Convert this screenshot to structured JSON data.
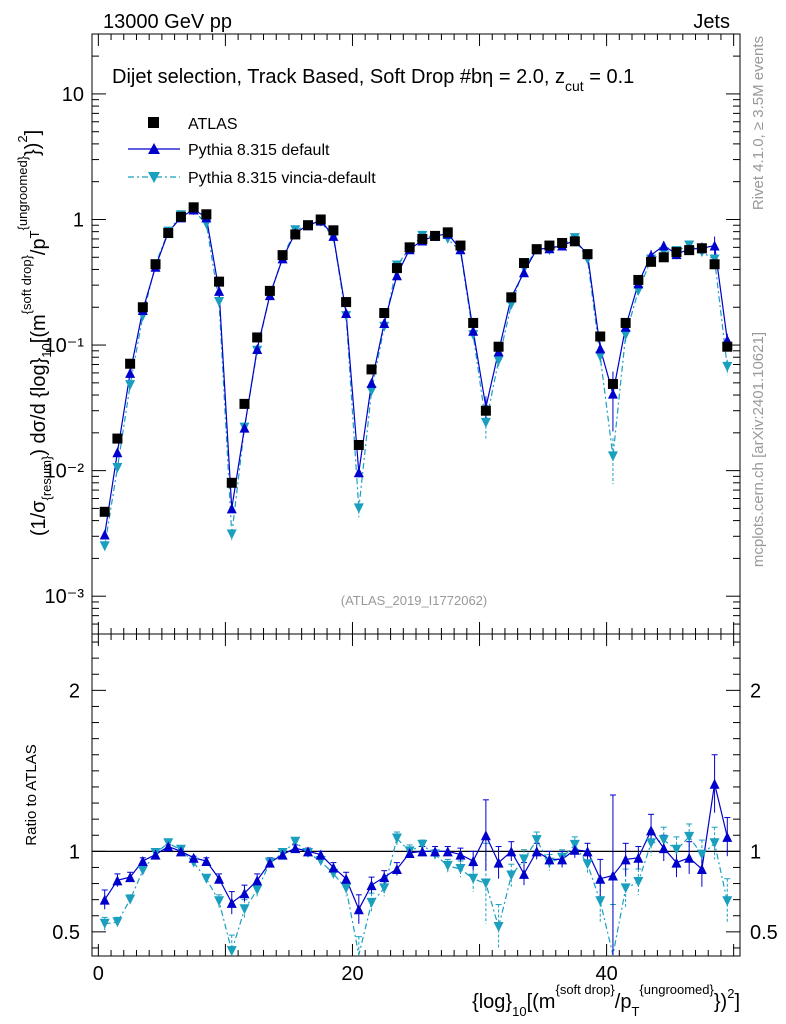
{
  "header": {
    "energy": "13000 GeV pp",
    "process": "Jets",
    "title": "Dijet selection, Track Based, Soft Drop #bη = 2.0, z",
    "title_sub": "cut",
    "title_end": " = 0.1"
  },
  "side": {
    "rivet": "Rivet 4.1.0, ≥ 3.5M events",
    "mcplots": "mcplots.cern.ch [arXiv:2401.10621]"
  },
  "reference": "(ATLAS_2019_I1772062)",
  "colors": {
    "atlas": "#000000",
    "default": "#0000cc",
    "vincia": "#1a9fbf"
  },
  "chart_data": {
    "type": "line",
    "upper": {
      "yscale": "log",
      "ylim": [
        0.0005,
        30
      ],
      "yticklabels": [
        "10",
        "1",
        "10⁻¹",
        "10⁻²",
        "10⁻³"
      ],
      "ylabel_parts": [
        "(1/σ",
        "{resum}",
        ") dσ/d {log}",
        "10",
        "[(m",
        "{soft drop}",
        "/p",
        "T",
        "{ungroomed}",
        "})",
        "2",
        "]"
      ]
    },
    "lower": {
      "ylim": [
        0.35,
        2.35
      ],
      "yticklabels": [
        "2",
        "1",
        "0.5"
      ],
      "ylabel": "Ratio to ATLAS"
    },
    "xlim": [
      -0.5,
      50.5
    ],
    "xticklabels": [
      "0",
      "20",
      "40"
    ],
    "xlabel_parts": [
      "{log}",
      "10",
      "[(m",
      "{soft drop}",
      "/p",
      "T",
      "{ungroomed}",
      "})",
      "2",
      "]"
    ],
    "x": [
      0.5,
      1.5,
      2.5,
      3.5,
      4.5,
      5.5,
      6.5,
      7.5,
      8.5,
      9.5,
      10.5,
      11.5,
      12.5,
      13.5,
      14.5,
      15.5,
      16.5,
      17.5,
      18.5,
      19.5,
      20.5,
      21.5,
      22.5,
      23.5,
      24.5,
      25.5,
      26.5,
      27.5,
      28.5,
      29.5,
      30.5,
      31.5,
      32.5,
      33.5,
      34.5,
      35.5,
      36.5,
      37.5,
      38.5,
      39.5,
      40.5,
      41.5,
      42.5,
      43.5,
      44.5,
      45.5,
      46.5,
      47.5,
      48.5,
      49.5
    ],
    "series": [
      {
        "name": "ATLAS",
        "style": "square",
        "values": [
          0.0047,
          0.018,
          0.071,
          0.2,
          0.44,
          0.78,
          1.05,
          1.25,
          1.1,
          0.32,
          0.008,
          0.034,
          0.115,
          0.27,
          0.52,
          0.76,
          0.9,
          1.0,
          0.82,
          0.22,
          0.016,
          0.064,
          0.18,
          0.41,
          0.6,
          0.7,
          0.74,
          0.79,
          0.62,
          0.15,
          0.03,
          0.097,
          0.24,
          0.45,
          0.58,
          0.62,
          0.65,
          0.67,
          0.53,
          0.117,
          0.049,
          0.15,
          0.33,
          0.46,
          0.5,
          0.55,
          0.57,
          0.59,
          0.44,
          0.097
        ]
      },
      {
        "name": "Pythia 8.315 default",
        "style": "triangle-up",
        "values": [
          0.0031,
          0.014,
          0.06,
          0.19,
          0.42,
          0.79,
          1.04,
          1.2,
          1.04,
          0.27,
          0.005,
          0.022,
          0.093,
          0.25,
          0.49,
          0.78,
          0.9,
          0.98,
          0.74,
          0.18,
          0.0097,
          0.05,
          0.15,
          0.36,
          0.58,
          0.68,
          0.74,
          0.77,
          0.58,
          0.13,
          0.032,
          0.089,
          0.24,
          0.38,
          0.58,
          0.59,
          0.62,
          0.68,
          0.53,
          0.094,
          0.041,
          0.14,
          0.31,
          0.52,
          0.62,
          0.53,
          0.58,
          0.59,
          0.62,
          0.11
        ],
        "ratio": [
          0.7,
          0.82,
          0.84,
          0.94,
          0.98,
          1.03,
          1.0,
          0.96,
          0.94,
          0.83,
          0.68,
          0.74,
          0.82,
          0.93,
          0.98,
          1.02,
          1.0,
          0.98,
          0.9,
          0.83,
          0.64,
          0.79,
          0.84,
          0.89,
          0.99,
          1.0,
          1.0,
          1.0,
          0.98,
          0.94,
          1.1,
          0.93,
          1.0,
          0.86,
          1.0,
          0.95,
          0.95,
          1.01,
          1.0,
          0.83,
          0.85,
          0.95,
          0.96,
          1.13,
          1.02,
          0.93,
          0.96,
          0.89,
          1.42,
          1.09
        ],
        "ratio_err": [
          0.06,
          0.04,
          0.03,
          0.02,
          0.02,
          0.01,
          0.01,
          0.01,
          0.02,
          0.03,
          0.07,
          0.05,
          0.04,
          0.03,
          0.02,
          0.02,
          0.02,
          0.02,
          0.03,
          0.04,
          0.09,
          0.05,
          0.04,
          0.04,
          0.03,
          0.03,
          0.03,
          0.03,
          0.04,
          0.06,
          0.22,
          0.1,
          0.06,
          0.07,
          0.05,
          0.05,
          0.05,
          0.05,
          0.05,
          0.12,
          0.5,
          0.1,
          0.07,
          0.1,
          0.08,
          0.09,
          0.1,
          0.11,
          0.18,
          0.12
        ]
      },
      {
        "name": "Pythia 8.315 vincia-default",
        "style": "triangle-down",
        "values": [
          0.0025,
          0.0105,
          0.048,
          0.17,
          0.44,
          0.8,
          1.08,
          1.18,
          0.92,
          0.22,
          0.0031,
          0.022,
          0.09,
          0.25,
          0.5,
          0.82,
          0.9,
          0.96,
          0.72,
          0.17,
          0.005,
          0.043,
          0.14,
          0.43,
          0.59,
          0.74,
          0.73,
          0.7,
          0.56,
          0.12,
          0.024,
          0.075,
          0.21,
          0.41,
          0.58,
          0.57,
          0.63,
          0.71,
          0.48,
          0.081,
          0.013,
          0.12,
          0.27,
          0.48,
          0.55,
          0.56,
          0.62,
          0.55,
          0.48,
          0.067
        ],
        "ratio": [
          0.55,
          0.56,
          0.7,
          0.88,
          0.99,
          1.05,
          1.01,
          0.93,
          0.83,
          0.69,
          0.38,
          0.64,
          0.76,
          0.93,
          0.99,
          1.06,
          0.99,
          0.94,
          0.86,
          0.77,
          0.32,
          0.68,
          0.77,
          1.08,
          1.0,
          1.04,
          0.98,
          0.91,
          0.89,
          0.83,
          0.8,
          0.53,
          0.85,
          0.95,
          1.07,
          0.93,
          0.96,
          1.04,
          0.92,
          0.69,
          0.27,
          0.77,
          0.81,
          1.05,
          1.07,
          1.01,
          1.09,
          0.98,
          1.05,
          0.69
        ],
        "ratio_err": [
          0.04,
          0.03,
          0.03,
          0.02,
          0.02,
          0.02,
          0.02,
          0.02,
          0.02,
          0.04,
          0.1,
          0.06,
          0.04,
          0.03,
          0.02,
          0.02,
          0.02,
          0.02,
          0.03,
          0.05,
          0.15,
          0.06,
          0.05,
          0.04,
          0.04,
          0.03,
          0.03,
          0.04,
          0.05,
          0.08,
          0.25,
          0.14,
          0.07,
          0.06,
          0.05,
          0.05,
          0.05,
          0.05,
          0.06,
          0.14,
          0.4,
          0.12,
          0.08,
          0.08,
          0.08,
          0.08,
          0.08,
          0.09,
          0.1,
          0.14
        ]
      }
    ]
  }
}
